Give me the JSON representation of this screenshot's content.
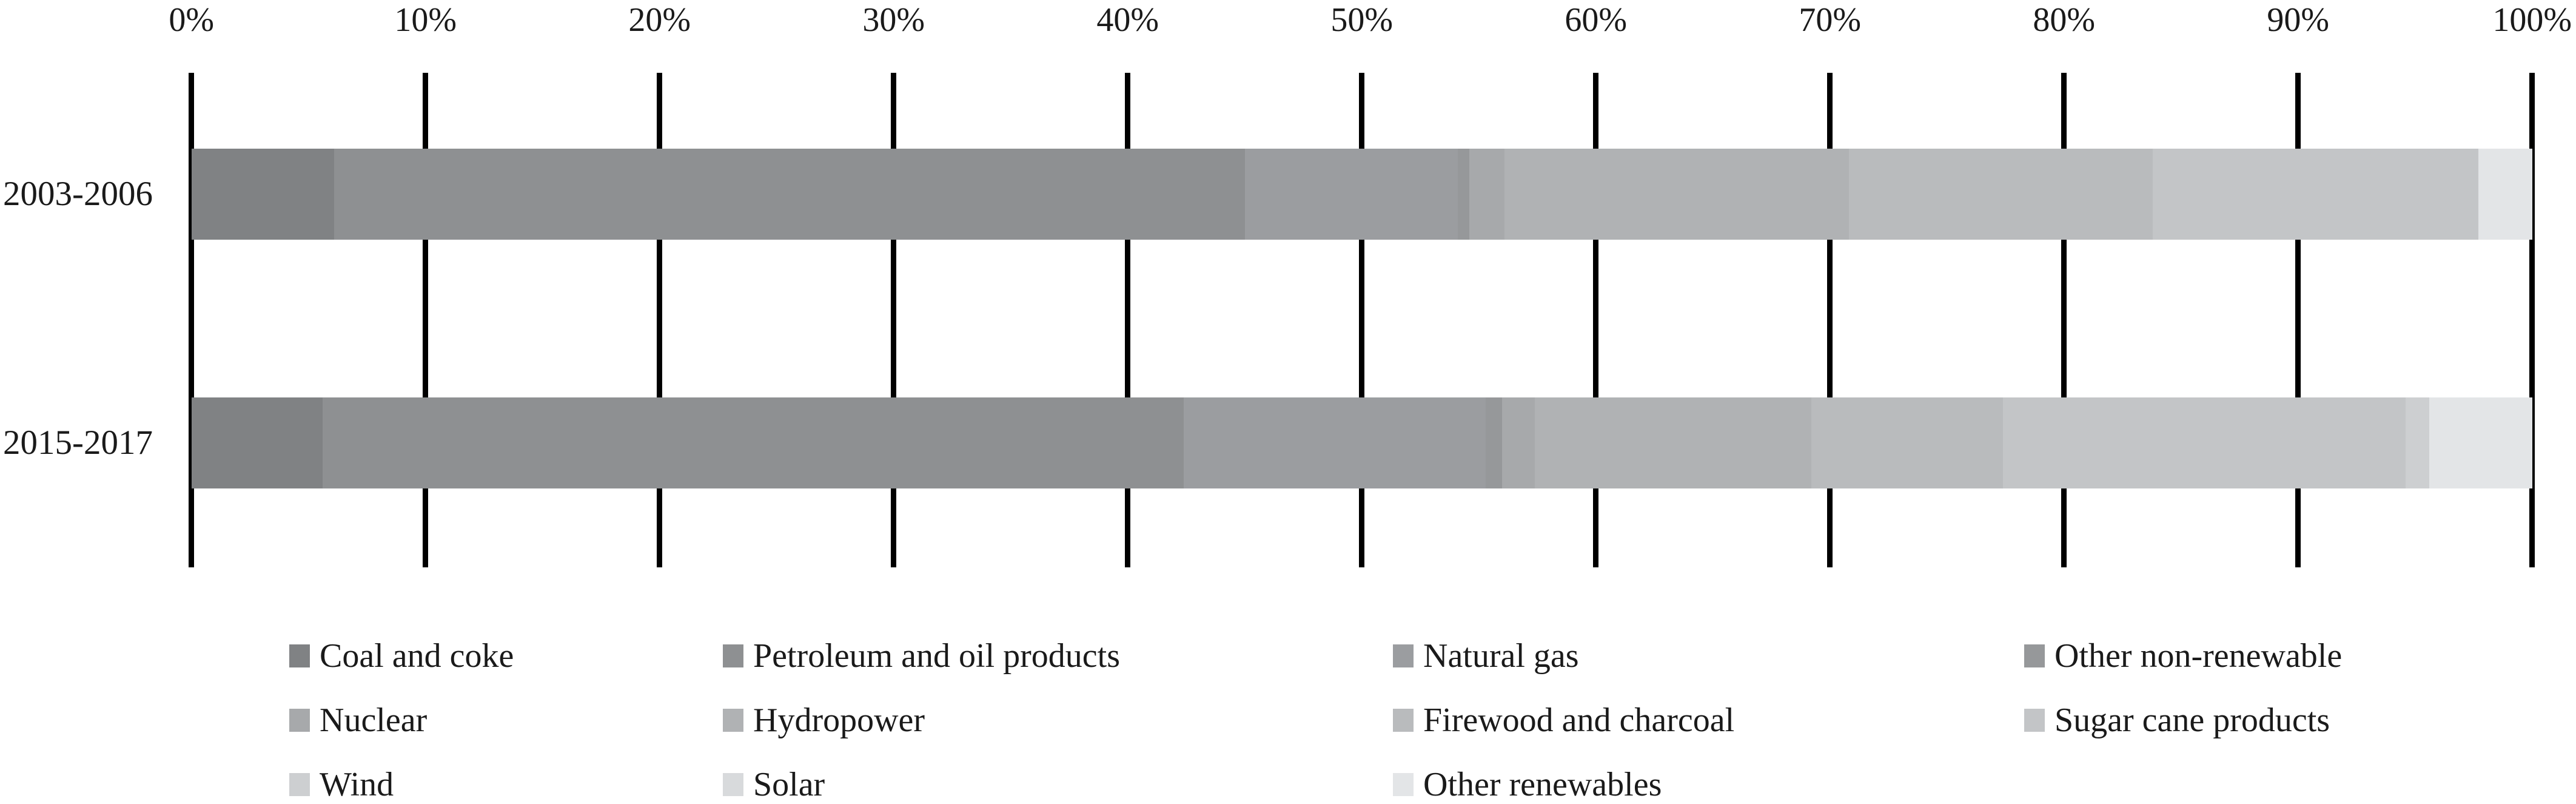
{
  "chart_data": {
    "type": "bar",
    "subtype": "horizontal-stacked-100pct",
    "title": "",
    "xlabel": "",
    "ylabel": "",
    "x_axis": {
      "ticks": [
        "0%",
        "10%",
        "20%",
        "30%",
        "40%",
        "50%",
        "60%",
        "70%",
        "80%",
        "90%",
        "100%"
      ],
      "range": [
        0,
        100
      ],
      "unit": "%",
      "position": "top"
    },
    "categories": [
      "2003-2006",
      "2015-2017"
    ],
    "series": [
      {
        "name": "Coal and coke",
        "color": "#808284",
        "values": [
          6.1,
          5.6
        ]
      },
      {
        "name": "Petroleum and oil products",
        "color": "#8e9092",
        "values": [
          38.9,
          36.8
        ]
      },
      {
        "name": "Natural gas",
        "color": "#9b9da0",
        "values": [
          9.1,
          12.9
        ]
      },
      {
        "name": "Other non-renewable",
        "color": "#96989a",
        "values": [
          0.5,
          0.7
        ]
      },
      {
        "name": "Nuclear",
        "color": "#a7a9ab",
        "values": [
          1.5,
          1.4
        ]
      },
      {
        "name": "Hydropower",
        "color": "#b0b2b4",
        "values": [
          14.7,
          11.8
        ]
      },
      {
        "name": "Firewood and charcoal",
        "color": "#b9bbbd",
        "values": [
          13.0,
          8.2
        ]
      },
      {
        "name": "Sugar cane products",
        "color": "#c3c5c7",
        "values": [
          13.9,
          17.2
        ]
      },
      {
        "name": "Wind",
        "color": "#cdcfd1",
        "values": [
          0.0,
          1.0
        ]
      },
      {
        "name": "Solar",
        "color": "#d8dadc",
        "values": [
          0.0,
          0.0
        ]
      },
      {
        "name": "Other renewables",
        "color": "#e3e5e7",
        "values": [
          2.3,
          4.4
        ]
      }
    ],
    "legend_position": "bottom",
    "legend_rows": [
      [
        "Coal and coke",
        "Petroleum and oil products",
        "Natural gas",
        "Other non-renewable"
      ],
      [
        "Nuclear",
        "Hydropower",
        "Firewood and charcoal",
        "Sugar cane products"
      ],
      [
        "Wind",
        "Solar",
        "Other renewables"
      ]
    ],
    "grid": "vertical-tick-lines",
    "gridline_color": "#000000",
    "background_color": "#ffffff"
  }
}
